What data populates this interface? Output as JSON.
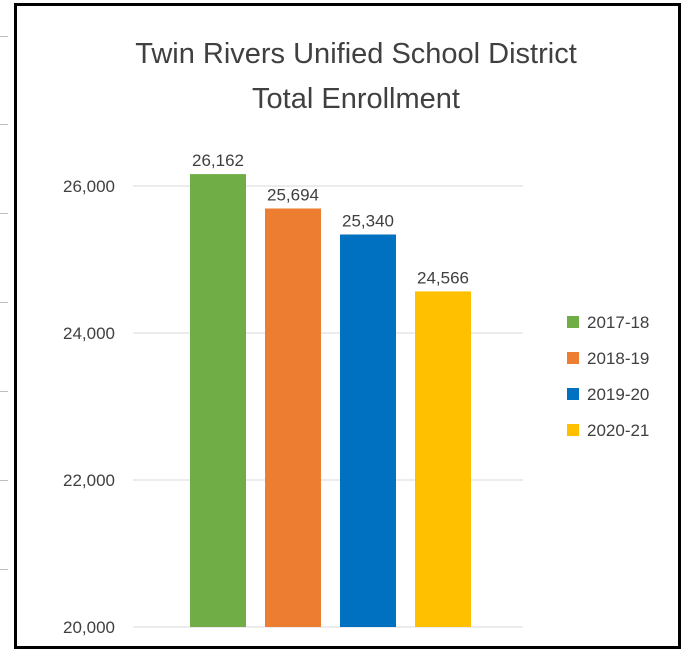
{
  "chart_data": {
    "type": "bar",
    "title": "Twin Rivers Unified School District",
    "subtitle": "Total Enrollment",
    "categories": [
      "2017-18",
      "2018-19",
      "2019-20",
      "2020-21"
    ],
    "values": [
      26162,
      25694,
      25340,
      24566
    ],
    "data_labels": [
      "26,162",
      "25,694",
      "25,340",
      "24,566"
    ],
    "colors": [
      "#70AD47",
      "#ED7D31",
      "#0070C0",
      "#FFC000"
    ],
    "ylim": [
      20000,
      26000
    ],
    "yticks": [
      20000,
      22000,
      24000,
      26000
    ],
    "ytick_labels": [
      "20,000",
      "22,000",
      "24,000",
      "26,000"
    ],
    "xlabel": "",
    "ylabel": "",
    "grid": true,
    "legend": {
      "position": "right",
      "entries": [
        "2017-18",
        "2018-19",
        "2019-20",
        "2020-21"
      ]
    }
  }
}
